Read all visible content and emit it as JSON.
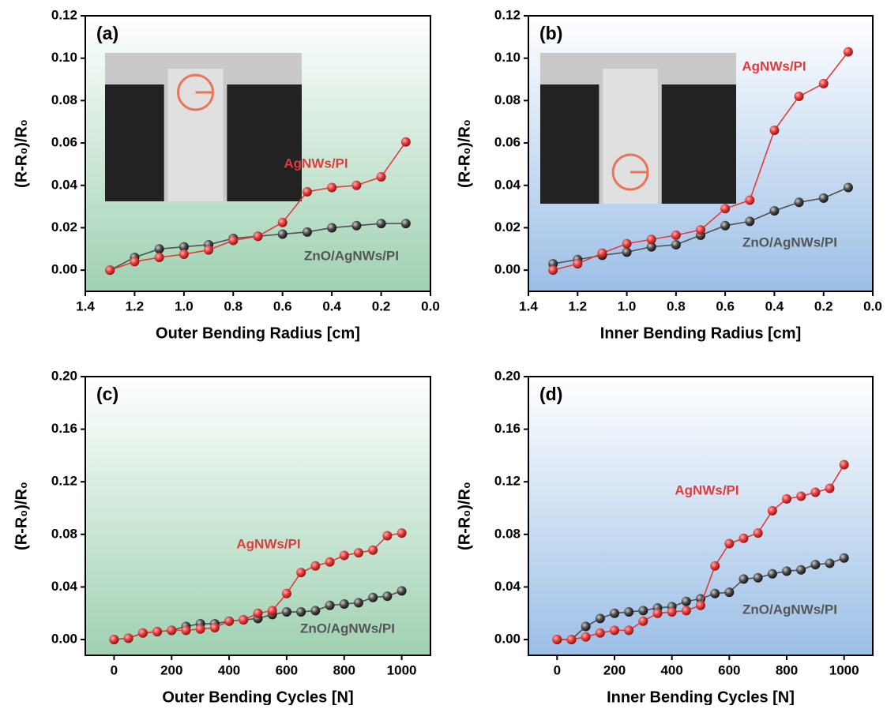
{
  "chart_data": [
    {
      "type": "line",
      "panel_label": "(a)",
      "x_label": "Outer Bending Radius [cm]",
      "y_label": "(R-R₀)/R₀",
      "x": [
        1.3,
        1.2,
        1.1,
        1.0,
        0.9,
        0.8,
        0.7,
        0.6,
        0.5,
        0.4,
        0.3,
        0.2,
        0.1
      ],
      "xlim": [
        1.4,
        0.0
      ],
      "xticks": [
        1.4,
        1.2,
        {
          "value": 1,
          "label": "1.0"
        },
        0.8,
        0.6,
        0.4,
        0.2,
        {
          "value": 0,
          "label": "0.0"
        }
      ],
      "ylim": [
        -0.01,
        0.12
      ],
      "yticks": [
        {
          "value": 0,
          "label": "0.00"
        },
        {
          "value": 0.02,
          "label": "0.02"
        },
        {
          "value": 0.04,
          "label": "0.04"
        },
        {
          "value": 0.06,
          "label": "0.06"
        },
        {
          "value": 0.08,
          "label": "0.08"
        },
        {
          "value": 0.1,
          "label": "0.10"
        },
        {
          "value": 0.12,
          "label": "0.12"
        }
      ],
      "series": [
        {
          "name": "AgNWs/PI",
          "color": "#e23b3b",
          "values": [
            0.0,
            0.004,
            0.006,
            0.0075,
            0.0095,
            0.014,
            0.016,
            0.0225,
            0.037,
            0.039,
            0.04,
            0.044,
            0.0605
          ]
        },
        {
          "name": "ZnO/AgNWs/PI",
          "color": "#505050",
          "values": [
            0.0,
            0.006,
            0.01,
            0.011,
            0.012,
            0.015,
            0.016,
            0.017,
            0.018,
            0.02,
            0.021,
            0.022,
            0.022
          ]
        }
      ]
    },
    {
      "type": "line",
      "panel_label": "(b)",
      "x_label": "Inner Bending Radius [cm]",
      "y_label": "(R-R₀)/R₀",
      "x": [
        1.3,
        1.2,
        1.1,
        1.0,
        0.9,
        0.8,
        0.7,
        0.6,
        0.5,
        0.4,
        0.3,
        0.2,
        0.1
      ],
      "xlim": [
        1.4,
        0.0
      ],
      "xticks": [
        1.4,
        1.2,
        {
          "value": 1,
          "label": "1.0"
        },
        0.8,
        0.6,
        0.4,
        0.2,
        {
          "value": 0,
          "label": "0.0"
        }
      ],
      "ylim": [
        -0.01,
        0.12
      ],
      "yticks": [
        {
          "value": 0,
          "label": "0.00"
        },
        {
          "value": 0.02,
          "label": "0.02"
        },
        {
          "value": 0.04,
          "label": "0.04"
        },
        {
          "value": 0.06,
          "label": "0.06"
        },
        {
          "value": 0.08,
          "label": "0.08"
        },
        {
          "value": 0.1,
          "label": "0.10"
        },
        {
          "value": 0.12,
          "label": "0.12"
        }
      ],
      "series": [
        {
          "name": "AgNWs/PI",
          "color": "#e23b3b",
          "values": [
            0.0,
            0.003,
            0.008,
            0.0125,
            0.0145,
            0.0165,
            0.019,
            0.029,
            0.033,
            0.066,
            0.082,
            0.088,
            0.103
          ]
        },
        {
          "name": "ZnO/AgNWs/PI",
          "color": "#505050",
          "values": [
            0.003,
            0.005,
            0.007,
            0.0085,
            0.011,
            0.012,
            0.0165,
            0.021,
            0.023,
            0.028,
            0.032,
            0.034,
            0.039
          ]
        }
      ]
    },
    {
      "type": "line",
      "panel_label": "(c)",
      "x_label": "Outer Bending Cycles [N]",
      "y_label": "(R-R₀)/R₀",
      "x": [
        0,
        50,
        100,
        150,
        200,
        250,
        300,
        350,
        400,
        450,
        500,
        550,
        600,
        650,
        700,
        750,
        800,
        850,
        900,
        950,
        1000
      ],
      "xlim": [
        -100,
        1100
      ],
      "xticks": [
        0,
        200,
        400,
        600,
        800,
        1000
      ],
      "ylim": [
        -0.012,
        0.2
      ],
      "yticks": [
        {
          "value": 0,
          "label": "0.00"
        },
        {
          "value": 0.04,
          "label": "0.04"
        },
        {
          "value": 0.08,
          "label": "0.08"
        },
        {
          "value": 0.12,
          "label": "0.12"
        },
        {
          "value": 0.16,
          "label": "0.16"
        },
        {
          "value": 0.2,
          "label": "0.20"
        }
      ],
      "series": [
        {
          "name": "AgNWs/PI",
          "color": "#e23b3b",
          "values": [
            0,
            0.001,
            0.005,
            0.006,
            0.007,
            0.007,
            0.008,
            0.009,
            0.014,
            0.015,
            0.02,
            0.022,
            0.035,
            0.051,
            0.056,
            0.059,
            0.064,
            0.066,
            0.068,
            0.079,
            0.081
          ]
        },
        {
          "name": "ZnO/AgNWs/PI",
          "color": "#505050",
          "values": [
            0,
            0.001,
            0.005,
            0.006,
            0.007,
            0.01,
            0.012,
            0.012,
            0.014,
            0.015,
            0.016,
            0.019,
            0.021,
            0.021,
            0.022,
            0.026,
            0.027,
            0.028,
            0.032,
            0.033,
            0.037
          ]
        }
      ]
    },
    {
      "type": "line",
      "panel_label": "(d)",
      "x_label": "Inner Bending Cycles [N]",
      "y_label": "(R-R₀)/R₀",
      "x": [
        0,
        50,
        100,
        150,
        200,
        250,
        300,
        350,
        400,
        450,
        500,
        550,
        600,
        650,
        700,
        750,
        800,
        850,
        900,
        950,
        1000
      ],
      "xlim": [
        -100,
        1100
      ],
      "xticks": [
        0,
        200,
        400,
        600,
        800,
        1000
      ],
      "ylim": [
        -0.012,
        0.2
      ],
      "yticks": [
        {
          "value": 0,
          "label": "0.00"
        },
        {
          "value": 0.04,
          "label": "0.04"
        },
        {
          "value": 0.08,
          "label": "0.08"
        },
        {
          "value": 0.12,
          "label": "0.12"
        },
        {
          "value": 0.16,
          "label": "0.16"
        },
        {
          "value": 0.2,
          "label": "0.20"
        }
      ],
      "series": [
        {
          "name": "AgNWs/PI",
          "color": "#e23b3b",
          "values": [
            0,
            0,
            0.002,
            0.005,
            0.007,
            0.007,
            0.014,
            0.02,
            0.021,
            0.022,
            0.026,
            0.056,
            0.073,
            0.077,
            0.081,
            0.098,
            0.107,
            0.109,
            0.112,
            0.115,
            0.133
          ]
        },
        {
          "name": "ZnO/AgNWs/PI",
          "color": "#505050",
          "values": [
            0,
            0,
            0.01,
            0.016,
            0.02,
            0.021,
            0.022,
            0.024,
            0.025,
            0.029,
            0.031,
            0.035,
            0.036,
            0.046,
            0.047,
            0.05,
            0.052,
            0.053,
            0.057,
            0.058,
            0.062
          ]
        }
      ]
    }
  ]
}
